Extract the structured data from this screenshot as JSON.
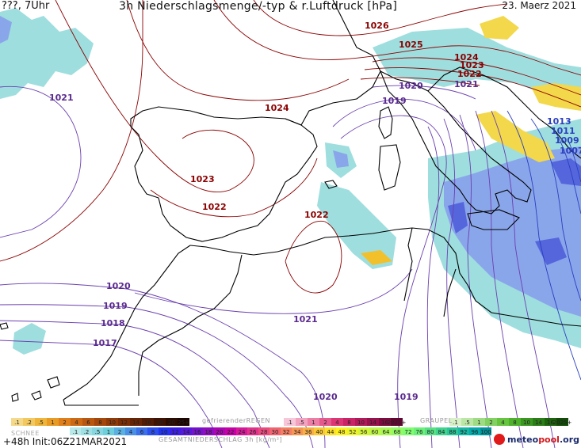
{
  "header": {
    "left": "???, 7Uhr",
    "title": "3h Niederschlagsmenge/-typ & r.Luftdruck [hPa]",
    "date": "23. Maerz 2021"
  },
  "isobar_labels": [
    {
      "text": "1026",
      "color": "red"
    },
    {
      "text": "1025",
      "color": "red"
    },
    {
      "text": "1024",
      "color": "red"
    },
    {
      "text": "1023",
      "color": "red"
    },
    {
      "text": "1022",
      "color": "red"
    },
    {
      "text": "1021",
      "color": "purple"
    },
    {
      "text": "1024",
      "color": "red"
    },
    {
      "text": "1023",
      "color": "red"
    },
    {
      "text": "1022",
      "color": "red"
    },
    {
      "text": "1020",
      "color": "purple"
    },
    {
      "text": "1019",
      "color": "purple"
    },
    {
      "text": "1021",
      "color": "purple"
    },
    {
      "text": "1013",
      "color": "blue"
    },
    {
      "text": "1011",
      "color": "blue"
    },
    {
      "text": "1009",
      "color": "blue"
    },
    {
      "text": "1007",
      "color": "blue"
    },
    {
      "text": "1022",
      "color": "red"
    },
    {
      "text": "1020",
      "color": "purple"
    },
    {
      "text": "1019",
      "color": "purple"
    },
    {
      "text": "1018",
      "color": "purple"
    },
    {
      "text": "1017",
      "color": "purple"
    },
    {
      "text": "1021",
      "color": "purple"
    },
    {
      "text": "1020",
      "color": "purple"
    },
    {
      "text": "1019",
      "color": "purple"
    }
  ],
  "legend": {
    "schnee_label": "SCHNEE",
    "schnee_values": [
      ".1",
      ".2",
      ".5",
      "1",
      "2",
      "4",
      "6",
      "8",
      "10",
      "12",
      "14",
      "16",
      "18",
      "20",
      "25+"
    ],
    "regen_label": "gefrierenderREGEN",
    "regen_values": [
      ".1",
      ".5",
      "1",
      "2",
      "4",
      "8",
      "10",
      "14",
      "16",
      "2025+"
    ],
    "graupel_label": "GRAUPEL",
    "graupel_values": [
      ".1",
      ".5",
      "1",
      "2",
      "4",
      "8",
      "10",
      "14",
      "16",
      "2025+"
    ],
    "total_values": [
      ".1",
      ".2",
      ".5",
      "1",
      "2",
      "4",
      "6",
      "8",
      "10",
      "12",
      "14",
      "16",
      "18",
      "20",
      "22",
      "24",
      "26",
      "28",
      "30",
      "32",
      "34",
      "36",
      "40",
      "44",
      "48",
      "52",
      "56",
      "60",
      "64",
      "68",
      "72",
      "76",
      "80",
      "84",
      "88",
      "92",
      "96",
      "100"
    ],
    "total_label": "GESAMTNIEDERSCHLAG 3h [kg/m²]",
    "schnee_colors": [
      "#f5d98a",
      "#f2c860",
      "#eeb53a",
      "#e79a24",
      "#de7f1b",
      "#cc6914",
      "#b85710",
      "#a4470d",
      "#8f3a0a",
      "#7a2e08",
      "#662406",
      "#521b05",
      "#3e1303",
      "#2b0c02",
      "#1c0601"
    ],
    "regen_colors": [
      "#f7c6d8",
      "#f2a2bf",
      "#ec7ea6",
      "#e55a8d",
      "#dd3674",
      "#c92466",
      "#b01a59",
      "#96124c",
      "#7c0b3f",
      "#620532"
    ],
    "graupel_colors": [
      "#d7f0c8",
      "#bbe6a6",
      "#9edb84",
      "#82d062",
      "#66c440",
      "#4fb02e",
      "#3c9722",
      "#2b7d17",
      "#1d630e",
      "#124a07"
    ],
    "total_colors": [
      "#b8e8e8",
      "#9fe0e4",
      "#86d7df",
      "#6dcfdb",
      "#5ab0e0",
      "#4a90e6",
      "#3b70ea",
      "#2c50ee",
      "#2034ef",
      "#3c1fe4",
      "#5818d8",
      "#7412cc",
      "#900cc0",
      "#ac06b4",
      "#c800a8",
      "#d6199a",
      "#e0328c",
      "#e94b7e",
      "#f06470",
      "#f47d62",
      "#f69654",
      "#f8af46",
      "#fac838",
      "#fce02a",
      "#fef01c",
      "#e9f22a",
      "#d4f438",
      "#bff646",
      "#aaf854",
      "#95fa62",
      "#80fc70",
      "#6bf07a",
      "#56e284",
      "#41d48e",
      "#2cc698",
      "#17b8a2",
      "#02aaac",
      "#00939a"
    ]
  },
  "footer": {
    "run": "+48h  Init:06Z21MAR2021",
    "logo_meteo": "meteo",
    "logo_pool": "pool",
    "logo_org": ".org"
  },
  "colors": {
    "coast": "#000000",
    "precip_light": "#9fdede",
    "precip_blue": "#8aa6ea",
    "precip_dark": "#5566dd",
    "snow_yellow": "#f2d84a",
    "isobar_red": "#8b0000",
    "isobar_purple": "#6a3fb0"
  }
}
